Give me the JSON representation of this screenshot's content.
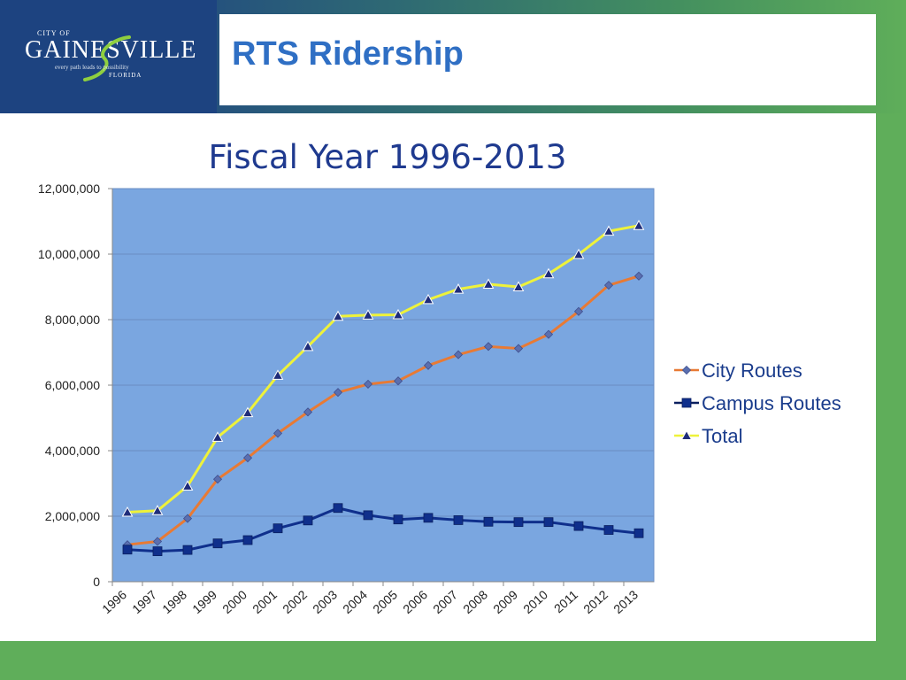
{
  "header": {
    "logo": {
      "small_text": "CITY OF",
      "wordmark": "GAINESVILLE",
      "tagline": "every path leads to possibility",
      "state": "FLORIDA"
    },
    "title": "RTS Ridership"
  },
  "colors": {
    "header_blue": "#1d4380",
    "background_green": "#5fae5a",
    "title_blue": "#2f6fc4",
    "plot_background": "#7aa6e0",
    "city_routes": "#e87a34",
    "campus_routes": "#0f2f8c",
    "total": "#eef23a"
  },
  "chart_data": {
    "type": "line",
    "title": "Fiscal Year 1996-2013",
    "xlabel": "",
    "ylabel": "",
    "categories": [
      "1996",
      "1997",
      "1998",
      "1999",
      "2000",
      "2001",
      "2002",
      "2003",
      "2004",
      "2005",
      "2006",
      "2007",
      "2008",
      "2009",
      "2010",
      "2011",
      "2012",
      "2013"
    ],
    "y_ticks": [
      "0",
      "2,000,000",
      "4,000,000",
      "6,000,000",
      "8,000,000",
      "10,000,000",
      "12,000,000"
    ],
    "ylim": [
      0,
      12000000
    ],
    "grid": true,
    "legend_position": "right",
    "series": [
      {
        "name": "City Routes",
        "marker": "diamond",
        "color": "#e87a34",
        "values": [
          1130000,
          1230000,
          1930000,
          3130000,
          3780000,
          4530000,
          5180000,
          5780000,
          6030000,
          6130000,
          6600000,
          6930000,
          7180000,
          7120000,
          7550000,
          8250000,
          9050000,
          9330000
        ]
      },
      {
        "name": "Campus Routes",
        "marker": "square",
        "color": "#0f2f8c",
        "values": [
          980000,
          930000,
          970000,
          1170000,
          1270000,
          1630000,
          1870000,
          2250000,
          2030000,
          1900000,
          1950000,
          1880000,
          1830000,
          1820000,
          1820000,
          1700000,
          1580000,
          1480000
        ]
      },
      {
        "name": "Total",
        "marker": "triangle",
        "color": "#eef23a",
        "values": [
          2120000,
          2170000,
          2920000,
          4410000,
          5160000,
          6300000,
          7180000,
          8100000,
          8140000,
          8150000,
          8610000,
          8930000,
          9080000,
          9000000,
          9400000,
          9990000,
          10700000,
          10870000
        ]
      }
    ]
  }
}
